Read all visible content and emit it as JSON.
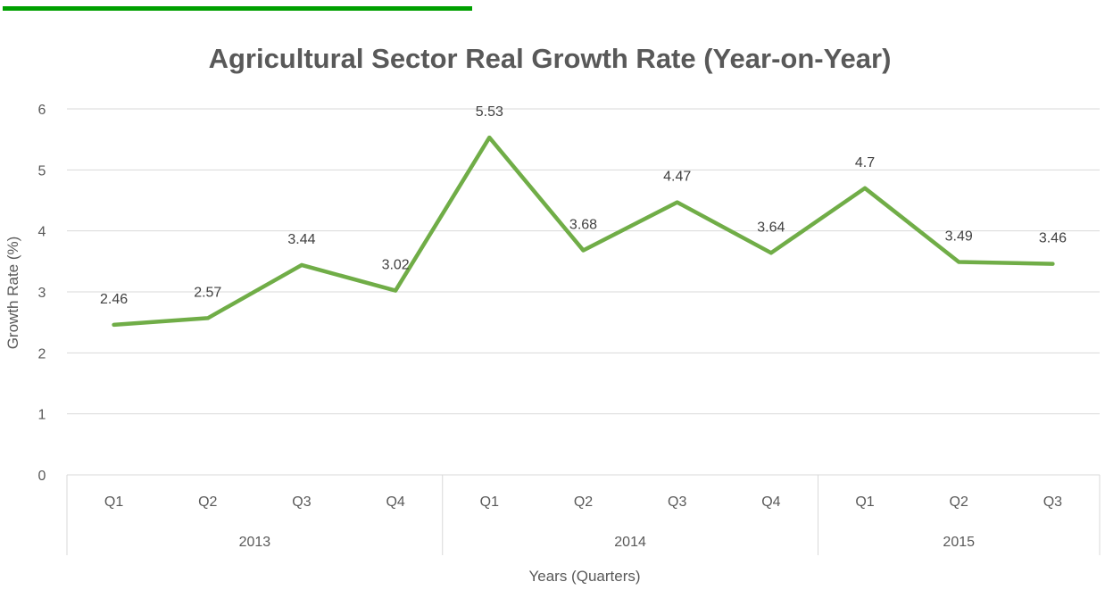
{
  "chart_data": {
    "type": "line",
    "title": "Agricultural Sector Real Growth Rate (Year-on-Year)",
    "xlabel": "Years (Quarters)",
    "ylabel": "Growth Rate (%)",
    "ylim": [
      0,
      6
    ],
    "yticks": [
      "0",
      "1",
      "2",
      "3",
      "4",
      "5",
      "6"
    ],
    "grid": true,
    "categories": [
      "Q1",
      "Q2",
      "Q3",
      "Q4",
      "Q1",
      "Q2",
      "Q3",
      "Q4",
      "Q1",
      "Q2",
      "Q3"
    ],
    "groups": [
      {
        "label": "2013",
        "count": 4
      },
      {
        "label": "2014",
        "count": 4
      },
      {
        "label": "2015",
        "count": 3
      }
    ],
    "series": [
      {
        "values": [
          2.46,
          2.57,
          3.44,
          3.02,
          5.53,
          3.68,
          4.47,
          3.64,
          4.7,
          3.49,
          3.46
        ],
        "labels": [
          "2.46",
          "2.57",
          "3.44",
          "3.02",
          "5.53",
          "3.68",
          "4.47",
          "3.64",
          "4.7",
          "3.49",
          "3.46"
        ],
        "color": "#70ad47"
      }
    ]
  },
  "colors": {
    "top_bar": "#00a000",
    "line": "#70ad47"
  }
}
